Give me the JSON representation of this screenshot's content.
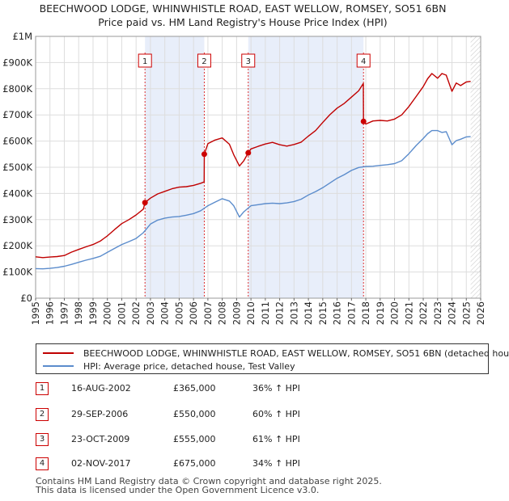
{
  "title_line1": "BEECHWOOD LODGE, WHINWHISTLE ROAD, EAST WELLOW, ROMSEY, SO51 6BN",
  "title_line2": "Price paid vs. HM Land Registry's House Price Index (HPI)",
  "legend": {
    "property": "BEECHWOOD LODGE, WHINWHISTLE ROAD, EAST WELLOW, ROMSEY, SO51 6BN (detached hou",
    "hpi": "HPI: Average price, detached house, Test Valley"
  },
  "colors": {
    "property": "#c00000",
    "hpi": "#5b8ccc",
    "shade": "#e8eefa",
    "marker_line": "#dd3333"
  },
  "sales": [
    {
      "num": "1",
      "date": "16-AUG-2002",
      "price": "£365,000",
      "hpi": "36% ↑ HPI",
      "x": 2002.62,
      "y": 365000
    },
    {
      "num": "2",
      "date": "29-SEP-2006",
      "price": "£550,000",
      "hpi": "60% ↑ HPI",
      "x": 2006.75,
      "y": 550000
    },
    {
      "num": "3",
      "date": "23-OCT-2009",
      "price": "£555,000",
      "hpi": "61% ↑ HPI",
      "x": 2009.81,
      "y": 555000
    },
    {
      "num": "4",
      "date": "02-NOV-2017",
      "price": "£675,000",
      "hpi": "34% ↑ HPI",
      "x": 2017.84,
      "y": 675000
    }
  ],
  "footer_line1": "Contains HM Land Registry data © Crown copyright and database right 2025.",
  "footer_line2": "This data is licensed under the Open Government Licence v3.0.",
  "chart_data": {
    "type": "line",
    "xlim": [
      1995,
      2026
    ],
    "ylim": [
      0,
      1000000
    ],
    "y_ticks": [
      {
        "v": 0,
        "label": "£0"
      },
      {
        "v": 100000,
        "label": "£100K"
      },
      {
        "v": 200000,
        "label": "£200K"
      },
      {
        "v": 300000,
        "label": "£300K"
      },
      {
        "v": 400000,
        "label": "£400K"
      },
      {
        "v": 500000,
        "label": "£500K"
      },
      {
        "v": 600000,
        "label": "£600K"
      },
      {
        "v": 700000,
        "label": "£700K"
      },
      {
        "v": 800000,
        "label": "£800K"
      },
      {
        "v": 900000,
        "label": "£900K"
      },
      {
        "v": 1000000,
        "label": "£1M"
      }
    ],
    "x_ticks": [
      "1995",
      "1996",
      "1997",
      "1998",
      "1999",
      "2000",
      "2001",
      "2002",
      "2003",
      "2004",
      "2005",
      "2006",
      "2007",
      "2008",
      "2009",
      "2010",
      "2011",
      "2012",
      "2013",
      "2014",
      "2015",
      "2016",
      "2017",
      "2018",
      "2019",
      "2020",
      "2021",
      "2022",
      "2023",
      "2024",
      "2025",
      "2026"
    ],
    "grid": true,
    "shaded_ranges": [
      [
        2002.62,
        2006.75
      ],
      [
        2009.81,
        2017.84
      ]
    ],
    "future_from": 2025.3,
    "series": [
      {
        "key": "property",
        "x": [
          1995.0,
          1995.5,
          1996.0,
          1996.5,
          1997.0,
          1997.5,
          1998.0,
          1998.5,
          1999.0,
          1999.5,
          2000.0,
          2000.5,
          2001.0,
          2001.5,
          2002.0,
          2002.5,
          2002.62,
          2003.0,
          2003.5,
          2004.0,
          2004.5,
          2005.0,
          2005.5,
          2006.0,
          2006.5,
          2006.74,
          2006.75,
          2007.0,
          2007.5,
          2008.0,
          2008.5,
          2008.8,
          2009.2,
          2009.5,
          2009.81,
          2010.0,
          2010.5,
          2011.0,
          2011.5,
          2012.0,
          2012.5,
          2013.0,
          2013.5,
          2014.0,
          2014.5,
          2015.0,
          2015.5,
          2016.0,
          2016.5,
          2017.0,
          2017.5,
          2017.83,
          2017.84,
          2018.0,
          2018.5,
          2019.0,
          2019.5,
          2020.0,
          2020.5,
          2021.0,
          2021.5,
          2022.0,
          2022.3,
          2022.6,
          2023.0,
          2023.3,
          2023.6,
          2024.0,
          2024.3,
          2024.6,
          2025.0,
          2025.3
        ],
        "y": [
          158000,
          155000,
          157000,
          159000,
          163000,
          176000,
          186000,
          196000,
          205000,
          218000,
          238000,
          262000,
          285000,
          300000,
          318000,
          340000,
          365000,
          382000,
          398000,
          408000,
          418000,
          424000,
          426000,
          431000,
          439000,
          444000,
          550000,
          590000,
          604000,
          612000,
          588000,
          548000,
          505000,
          525000,
          555000,
          570000,
          580000,
          589000,
          595000,
          586000,
          581000,
          587000,
          596000,
          619000,
          640000,
          671000,
          701000,
          726000,
          744000,
          768000,
          792000,
          820000,
          675000,
          665000,
          677000,
          679000,
          677000,
          684000,
          700000,
          732000,
          770000,
          808000,
          838000,
          858000,
          840000,
          858000,
          852000,
          790000,
          822000,
          812000,
          826000,
          828000
        ]
      },
      {
        "key": "hpi",
        "x": [
          1995.0,
          1995.5,
          1996.0,
          1996.5,
          1997.0,
          1997.5,
          1998.0,
          1998.5,
          1999.0,
          1999.5,
          2000.0,
          2000.5,
          2001.0,
          2001.5,
          2002.0,
          2002.5,
          2003.0,
          2003.5,
          2004.0,
          2004.5,
          2005.0,
          2005.5,
          2006.0,
          2006.5,
          2007.0,
          2007.5,
          2008.0,
          2008.5,
          2008.8,
          2009.2,
          2009.5,
          2010.0,
          2010.5,
          2011.0,
          2011.5,
          2012.0,
          2012.5,
          2013.0,
          2013.5,
          2014.0,
          2014.5,
          2015.0,
          2015.5,
          2016.0,
          2016.5,
          2017.0,
          2017.5,
          2018.0,
          2018.5,
          2019.0,
          2019.5,
          2020.0,
          2020.5,
          2021.0,
          2021.5,
          2022.0,
          2022.3,
          2022.6,
          2023.0,
          2023.3,
          2023.6,
          2024.0,
          2024.3,
          2024.6,
          2025.0,
          2025.3
        ],
        "y": [
          113000,
          112000,
          114000,
          117000,
          122000,
          129000,
          137000,
          145000,
          152000,
          160000,
          175000,
          190000,
          205000,
          216000,
          228000,
          250000,
          283000,
          298000,
          306000,
          310000,
          312000,
          317000,
          323000,
          334000,
          353000,
          367000,
          380000,
          371000,
          353000,
          310000,
          330000,
          353000,
          357000,
          361000,
          363000,
          361000,
          364000,
          369000,
          378000,
          394000,
          407000,
          422000,
          440000,
          458000,
          472000,
          488000,
          499000,
          503000,
          504000,
          507000,
          510000,
          514000,
          525000,
          552000,
          583000,
          610000,
          628000,
          640000,
          640000,
          633000,
          636000,
          586000,
          602000,
          607000,
          616000,
          617000
        ]
      }
    ]
  }
}
